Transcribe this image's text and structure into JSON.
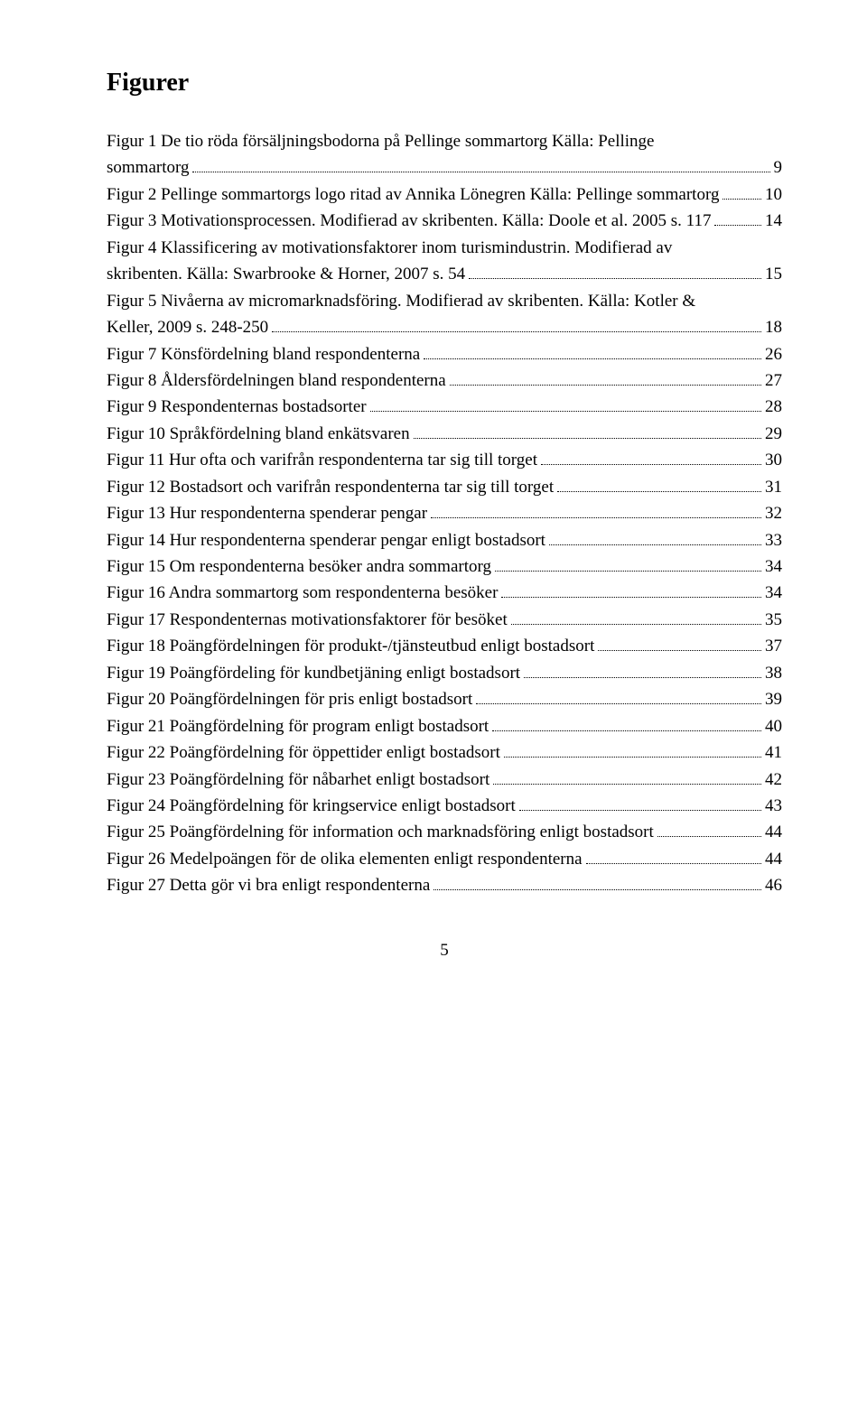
{
  "title": "Figurer",
  "footer_page": "5",
  "entries": [
    {
      "lines": [
        "Figur 1 De tio röda försäljningsbodorna på Pellinge sommartorg Källa: Pellinge",
        "sommartorg"
      ],
      "page": "9"
    },
    {
      "lines": [
        "Figur 2 Pellinge sommartorgs logo ritad av Annika Lönegren Källa: Pellinge sommartorg"
      ],
      "page": "10"
    },
    {
      "lines": [
        "Figur 3 Motivationsprocessen. Modifierad av skribenten. Källa: Doole et al. 2005 s. 117"
      ],
      "page": "14"
    },
    {
      "lines": [
        "Figur 4 Klassificering av motivationsfaktorer inom turismindustrin. Modifierad av",
        "skribenten. Källa: Swarbrooke & Horner, 2007 s. 54"
      ],
      "page": "15"
    },
    {
      "lines": [
        "Figur 5 Nivåerna av micromarknadsföring. Modifierad av skribenten. Källa: Kotler &",
        "Keller, 2009 s. 248-250"
      ],
      "page": "18"
    },
    {
      "lines": [
        "Figur 7 Könsfördelning bland respondenterna"
      ],
      "page": "26"
    },
    {
      "lines": [
        "Figur 8 Åldersfördelningen bland respondenterna"
      ],
      "page": "27"
    },
    {
      "lines": [
        "Figur 9 Respondenternas bostadsorter"
      ],
      "page": "28"
    },
    {
      "lines": [
        "Figur 10 Språkfördelning bland enkätsvaren"
      ],
      "page": "29"
    },
    {
      "lines": [
        "Figur 11 Hur ofta och varifrån respondenterna tar sig till torget"
      ],
      "page": "30"
    },
    {
      "lines": [
        "Figur 12 Bostadsort och varifrån respondenterna tar sig till torget"
      ],
      "page": "31"
    },
    {
      "lines": [
        "Figur 13 Hur respondenterna spenderar pengar"
      ],
      "page": "32"
    },
    {
      "lines": [
        "Figur 14 Hur respondenterna spenderar pengar enligt bostadsort"
      ],
      "page": "33"
    },
    {
      "lines": [
        "Figur 15 Om respondenterna besöker andra sommartorg"
      ],
      "page": "34"
    },
    {
      "lines": [
        "Figur 16 Andra sommartorg som respondenterna besöker"
      ],
      "page": "34"
    },
    {
      "lines": [
        "Figur 17 Respondenternas motivationsfaktorer för besöket"
      ],
      "page": "35"
    },
    {
      "lines": [
        "Figur 18 Poängfördelningen för produkt-/tjänsteutbud enligt bostadsort"
      ],
      "page": "37"
    },
    {
      "lines": [
        "Figur 19 Poängfördeling för kundbetjäning enligt bostadsort"
      ],
      "page": "38"
    },
    {
      "lines": [
        "Figur 20 Poängfördelningen för pris enligt bostadsort"
      ],
      "page": "39"
    },
    {
      "lines": [
        "Figur 21 Poängfördelning för program enligt bostadsort"
      ],
      "page": "40"
    },
    {
      "lines": [
        "Figur 22 Poängfördelning för öppettider enligt bostadsort"
      ],
      "page": "41"
    },
    {
      "lines": [
        "Figur 23 Poängfördelning för nåbarhet enligt bostadsort"
      ],
      "page": "42"
    },
    {
      "lines": [
        "Figur 24 Poängfördelning för kringservice enligt bostadsort"
      ],
      "page": "43"
    },
    {
      "lines": [
        "Figur 25 Poängfördelning för information och marknadsföring enligt bostadsort"
      ],
      "page": "44"
    },
    {
      "lines": [
        "Figur 26 Medelpoängen för de olika elementen enligt respondenterna"
      ],
      "page": "44"
    },
    {
      "lines": [
        "Figur 27 Detta gör vi bra enligt respondenterna"
      ],
      "page": "46"
    }
  ]
}
